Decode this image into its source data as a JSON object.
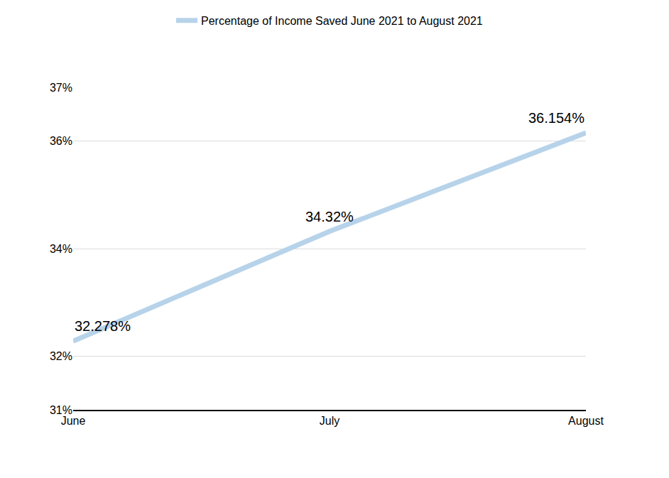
{
  "chart_data": {
    "type": "line",
    "categories": [
      "June",
      "July",
      "August"
    ],
    "series": [
      {
        "name": "Percentage of Income Saved June 2021 to August 2021",
        "color": "#b7d3ea",
        "values": [
          32.278,
          34.32,
          36.154
        ],
        "value_labels": [
          "32.278%",
          "34.32%",
          "36.154%"
        ]
      }
    ],
    "ylim": [
      31,
      37
    ],
    "yticks": [
      {
        "value": 31,
        "label": "31%"
      },
      {
        "value": 32,
        "label": "32%"
      },
      {
        "value": 34,
        "label": "34%"
      },
      {
        "value": 36,
        "label": "36%"
      },
      {
        "value": 37,
        "label": "37%"
      }
    ],
    "grid": true,
    "legend": "top",
    "data_labels": true
  }
}
